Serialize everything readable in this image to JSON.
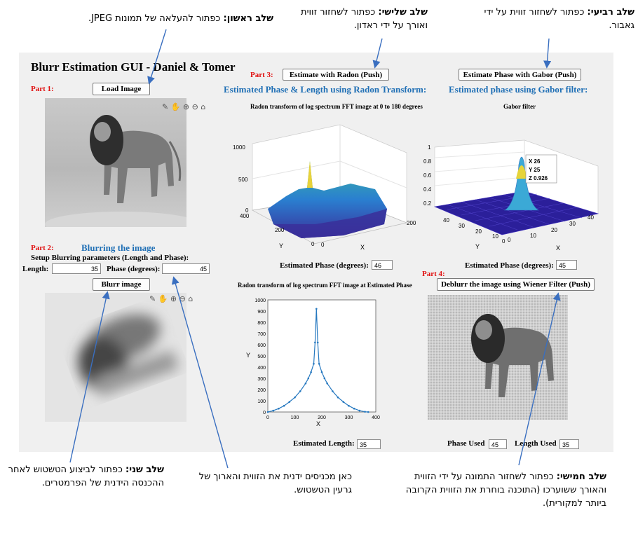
{
  "title": "Blurr Estimation GUI - Daniel & Tomer",
  "part1": {
    "label": "Part 1:",
    "button": "Load Image"
  },
  "part2": {
    "label": "Part 2:",
    "heading": "Blurring the image",
    "setup": "Setup Blurring parameters (Length and Phase):",
    "length_label": "Length:",
    "length_value": "35",
    "phase_label": "Phase (degrees):",
    "phase_value": "45",
    "button": "Blurr image"
  },
  "part3": {
    "label": "Part 3:",
    "button": "Estimate with Radon (Push)",
    "heading": "Estimated Phase & Length using Radon Transform:",
    "plot1_title": "Radon transform of log spectrum FFT image at 0 to 180 degrees",
    "est_phase_label": "Estimated Phase (degrees):",
    "est_phase_value": "46",
    "plot2_title": "Radon transform of log spectrum FFT image at Estimated Phase",
    "est_length_label": "Estimated Length:",
    "est_length_value": "35"
  },
  "part_gabor": {
    "button": "Estimate Phase with Gabor (Push)",
    "heading": "Estimated phase using Gabor filter:",
    "plot_title": "Gabor filter",
    "est_phase_label": "Estimated Phase (degrees):",
    "est_phase_value": "45",
    "datatip": [
      "X 26",
      "Y 25",
      "Z 0.926"
    ]
  },
  "part4": {
    "label": "Part 4:",
    "button": "Deblurr the image using Wiener Filter (Push)",
    "phase_used_label": "Phase Used",
    "phase_used_value": "45",
    "length_used_label": "Length Used",
    "length_used_value": "35"
  },
  "axes": {
    "radon3d": {
      "z_ticks": [
        "1000",
        "500",
        "0"
      ],
      "y_ticks": [
        "400",
        "200",
        "0"
      ],
      "x_ticks": [
        "0",
        "200"
      ],
      "y_label": "Y",
      "x_label": "X"
    },
    "gabor3d": {
      "z_ticks": [
        "1",
        "0.8",
        "0.6",
        "0.4",
        "0.2"
      ],
      "y_ticks": [
        "40",
        "30",
        "20",
        "10",
        "0"
      ],
      "x_ticks": [
        "0",
        "10",
        "20",
        "30",
        "40"
      ],
      "y_label": "Y",
      "x_label": "X"
    }
  },
  "chart_data": {
    "type": "line",
    "title": "Radon transform of log spectrum FFT image at Estimated Phase",
    "xlabel": "X",
    "ylabel": "Y",
    "xlim": [
      0,
      400
    ],
    "ylim": [
      0,
      1000
    ],
    "x_ticks": [
      0,
      100,
      200,
      300,
      400
    ],
    "y_ticks": [
      0,
      100,
      200,
      300,
      400,
      500,
      600,
      700,
      800,
      900,
      1000
    ],
    "x": [
      0,
      20,
      40,
      60,
      80,
      100,
      120,
      140,
      150,
      160,
      170,
      175,
      180,
      185,
      190,
      200,
      210,
      220,
      240,
      260,
      280,
      300,
      320,
      340,
      360,
      372
    ],
    "y": [
      0,
      12,
      30,
      55,
      90,
      130,
      185,
      255,
      300,
      355,
      430,
      620,
      920,
      620,
      430,
      355,
      300,
      255,
      185,
      130,
      90,
      55,
      30,
      12,
      2,
      0
    ]
  },
  "annotations": {
    "a1": {
      "bold": "שלב ראשון:",
      "text": " כפתור להעלאה של תמונות JPEG."
    },
    "a2": {
      "bold": "שלב שני:",
      "text": " כפתור לביצוע הטשטוש לאחר ההכנסה הידנית של הפרמטרים."
    },
    "a_mid": {
      "text": "כאן מכניסים ידנית את הזווית והארוך של גרעין הטשטוש."
    },
    "a3": {
      "bold": "שלב שלישי:",
      "text": " כפתור לשחזור זווית ואורך על ידי ראדון."
    },
    "a4": {
      "bold": "שלב רביעי:",
      "text": " כפתור לשחזור זווית על ידי גאבור."
    },
    "a5": {
      "bold": "שלב חמישי:",
      "text": " כפתור לשחזור התמונה על ידי הזווית והאורך ששוערכו (התוכנה בוחרת את הזווית הקרובה ביותר למקורית)."
    }
  }
}
